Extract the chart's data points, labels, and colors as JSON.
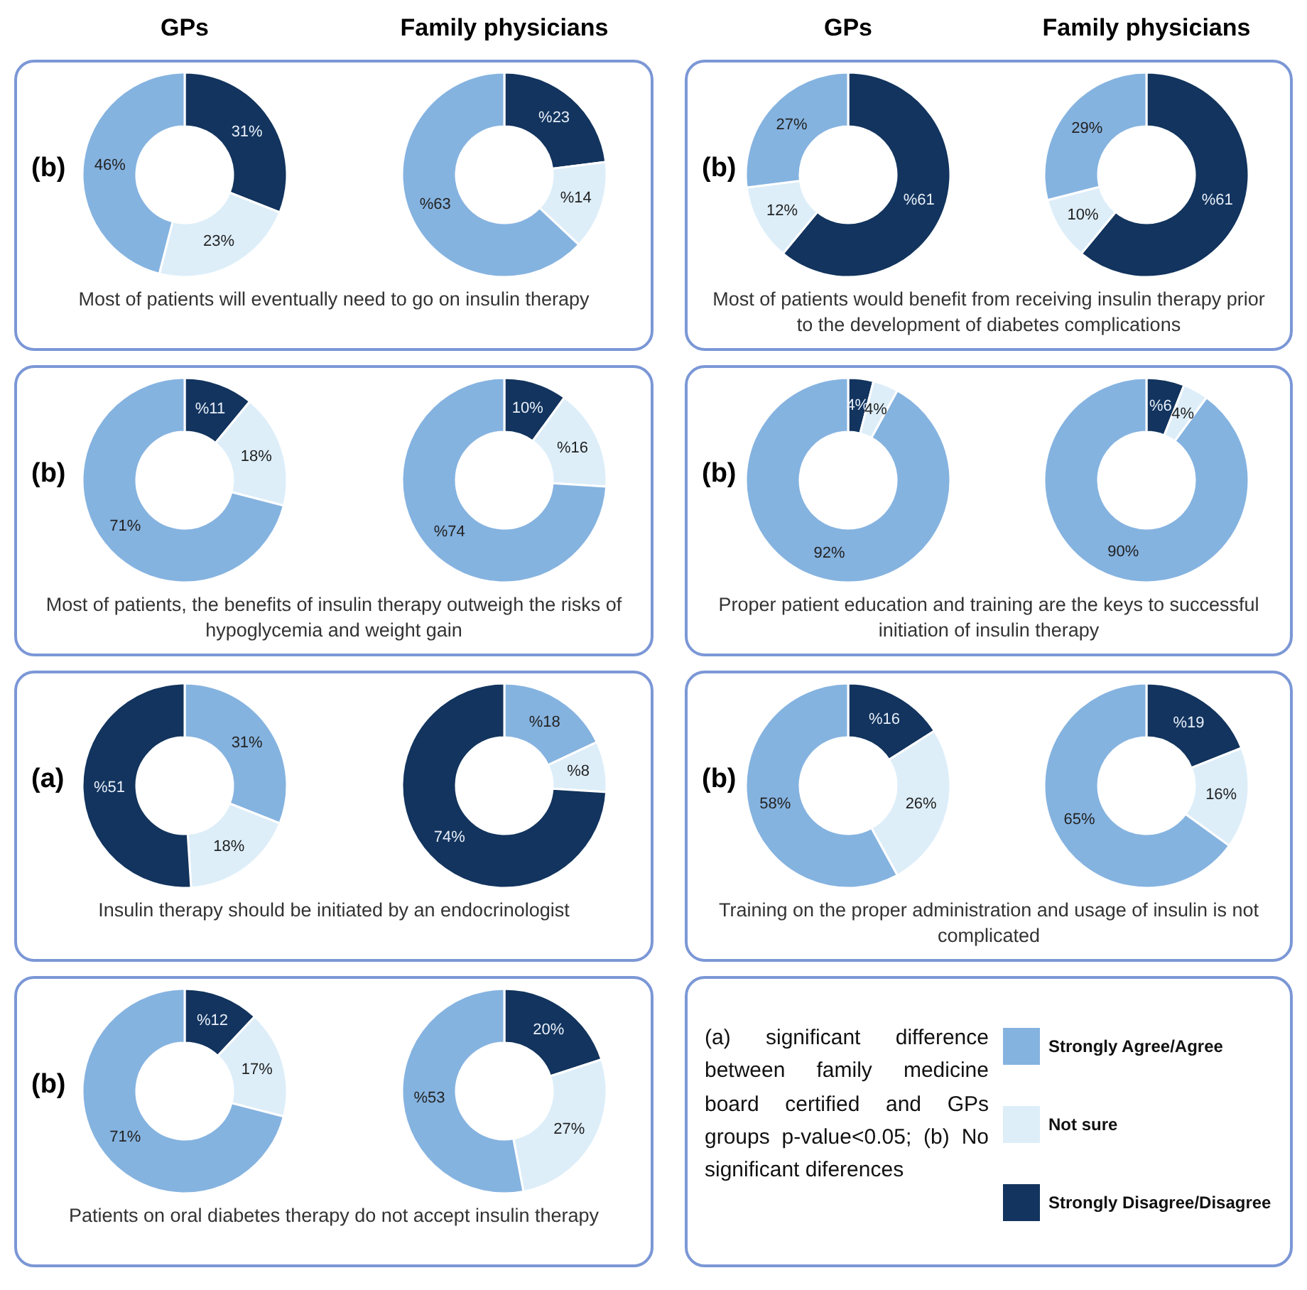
{
  "chart_data": [
    {
      "type": "donut",
      "title": "GPs",
      "categories": [
        null,
        null,
        null
      ],
      "values": [
        31,
        23,
        46
      ],
      "colors": [
        "#12345e",
        "#ddeef9",
        "#85b3e0"
      ],
      "value_labels": [
        "31%",
        "23%",
        "46%"
      ],
      "annotations": [
        "(b)",
        "Most of patients will eventually need to go on insulin therapy"
      ]
    },
    {
      "type": "donut",
      "title": "Family physicians",
      "categories": [
        null,
        null,
        null
      ],
      "values": [
        23,
        14,
        63
      ],
      "colors": [
        "#12345e",
        "#ddeef9",
        "#85b3e0"
      ],
      "value_labels": [
        "%23",
        "%14",
        "%63"
      ]
    },
    {
      "type": "donut",
      "title": "GPs",
      "categories": [
        null,
        null,
        null
      ],
      "values": [
        61,
        12,
        27
      ],
      "colors": [
        "#12345e",
        "#ddeef9",
        "#85b3e0"
      ],
      "value_labels": [
        "%61",
        "12%",
        "27%"
      ],
      "annotations": [
        "(b)",
        "Most of patients would benefit from receiving insulin therapy prior to the development of diabetes complications"
      ]
    },
    {
      "type": "donut",
      "title": "Family physicians",
      "categories": [
        null,
        null,
        null
      ],
      "values": [
        61,
        10,
        29
      ],
      "colors": [
        "#12345e",
        "#ddeef9",
        "#85b3e0"
      ],
      "value_labels": [
        "%61",
        "10%",
        "29%"
      ]
    },
    {
      "type": "donut",
      "categories": [
        null,
        null,
        null
      ],
      "values": [
        11,
        18,
        71
      ],
      "colors": [
        "#12345e",
        "#ddeef9",
        "#85b3e0"
      ],
      "value_labels": [
        "%11",
        "18%",
        "71%"
      ],
      "annotations": [
        "(b)",
        "Most of patients, the benefits of insulin therapy outweigh the risks of hypoglycemia and weight gain"
      ]
    },
    {
      "type": "donut",
      "categories": [
        null,
        null,
        null
      ],
      "values": [
        10,
        16,
        74
      ],
      "colors": [
        "#12345e",
        "#ddeef9",
        "#85b3e0"
      ],
      "value_labels": [
        "10%",
        "%16",
        "%74"
      ]
    },
    {
      "type": "donut",
      "categories": [
        null,
        null,
        null
      ],
      "values": [
        4,
        4,
        92
      ],
      "colors": [
        "#12345e",
        "#ddeef9",
        "#85b3e0"
      ],
      "value_labels": [
        "4%",
        "4%",
        "92%"
      ],
      "annotations": [
        "(b)",
        "Proper patient education and training are the keys to successful initiation of insulin therapy"
      ]
    },
    {
      "type": "donut",
      "categories": [
        null,
        null,
        null
      ],
      "values": [
        6,
        4,
        90
      ],
      "colors": [
        "#12345e",
        "#ddeef9",
        "#85b3e0"
      ],
      "value_labels": [
        "%6",
        "4%",
        "90%"
      ]
    },
    {
      "type": "donut",
      "categories": [
        null,
        null,
        null
      ],
      "values": [
        31,
        18,
        51
      ],
      "colors": [
        "#85b3e0",
        "#ddeef9",
        "#12345e"
      ],
      "value_labels": [
        "31%",
        "18%",
        "%51"
      ],
      "annotations": [
        "(a)",
        "Insulin therapy should be initiated by an endocrinologist"
      ]
    },
    {
      "type": "donut",
      "categories": [
        null,
        null,
        null
      ],
      "values": [
        18,
        8,
        74
      ],
      "colors": [
        "#85b3e0",
        "#ddeef9",
        "#12345e"
      ],
      "value_labels": [
        "%18",
        "%8",
        "74%"
      ]
    },
    {
      "type": "donut",
      "categories": [
        null,
        null,
        null
      ],
      "values": [
        16,
        26,
        58
      ],
      "colors": [
        "#12345e",
        "#ddeef9",
        "#85b3e0"
      ],
      "value_labels": [
        "%16",
        "26%",
        "58%"
      ],
      "annotations": [
        "(b)",
        "Training on the proper administration and usage of insulin is not complicated"
      ]
    },
    {
      "type": "donut",
      "categories": [
        null,
        null,
        null
      ],
      "values": [
        19,
        16,
        65
      ],
      "colors": [
        "#12345e",
        "#ddeef9",
        "#85b3e0"
      ],
      "value_labels": [
        "%19",
        "16%",
        "65%"
      ]
    },
    {
      "type": "donut",
      "categories": [
        null,
        null,
        null
      ],
      "values": [
        12,
        17,
        71
      ],
      "colors": [
        "#12345e",
        "#ddeef9",
        "#85b3e0"
      ],
      "value_labels": [
        "%12",
        "17%",
        "71%"
      ],
      "annotations": [
        "(b)",
        "Patients on oral diabetes therapy do not accept insulin therapy"
      ]
    },
    {
      "type": "donut",
      "categories": [
        null,
        null,
        null
      ],
      "values": [
        20,
        27,
        53
      ],
      "colors": [
        "#12345e",
        "#ddeef9",
        "#85b3e0"
      ],
      "value_labels": [
        "20%",
        "27%",
        "%53"
      ]
    },
    {
      "type": "other",
      "categories": [
        "Strongly Agree/Agree",
        "Not sure",
        "Strongly Disagree/Disagree"
      ],
      "colors": [
        "#85b3e0",
        "#ddeef9",
        "#12345e"
      ],
      "annotations": [
        "(a) significant difference between family medicine board certified and GPs groups p-value<0.05; (b) No significant diferences"
      ]
    }
  ]
}
